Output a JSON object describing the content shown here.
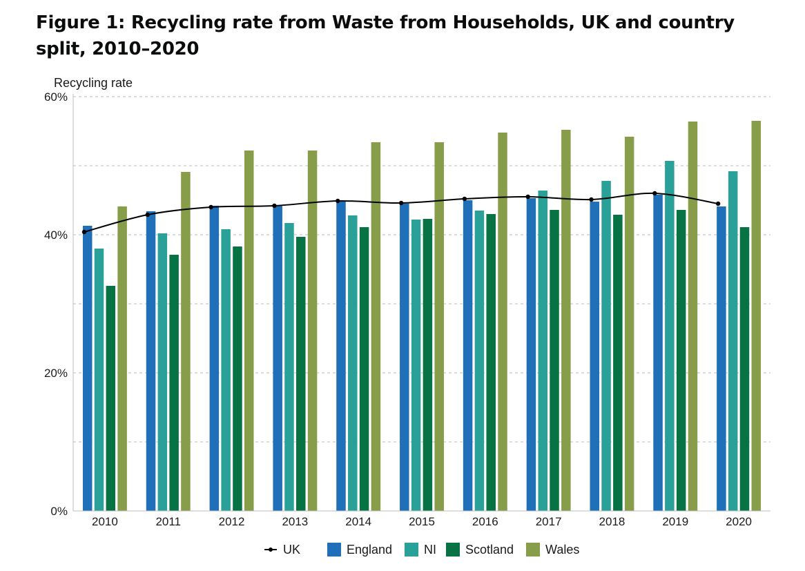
{
  "title": "Figure 1: Recycling rate from Waste from Households, UK and country split, 2010–2020",
  "chart_data": {
    "type": "bar",
    "title": "Figure 1: Recycling rate from Waste from Households, UK and country split, 2010–2020",
    "ylabel": "Recycling rate",
    "xlabel": "",
    "categories": [
      "2010",
      "2011",
      "2012",
      "2013",
      "2014",
      "2015",
      "2016",
      "2017",
      "2018",
      "2019",
      "2020"
    ],
    "ylim": [
      0,
      60
    ],
    "yticks": [
      "0%",
      "20%",
      "40%",
      "60%"
    ],
    "grid": "horizontal dashed",
    "legend_position": "bottom",
    "series": [
      {
        "name": "England",
        "type": "bar",
        "color": "#1f6fb9",
        "values": [
          41.3,
          43.4,
          44.2,
          44.2,
          44.8,
          44.5,
          45.0,
          45.3,
          44.8,
          45.8,
          44.1
        ]
      },
      {
        "name": "NI",
        "type": "bar",
        "color": "#2aa198",
        "values": [
          38.0,
          40.2,
          40.8,
          41.7,
          42.8,
          42.2,
          43.5,
          46.4,
          47.8,
          50.7,
          49.2
        ]
      },
      {
        "name": "Scotland",
        "type": "bar",
        "color": "#077244",
        "values": [
          32.6,
          37.1,
          38.3,
          39.7,
          41.1,
          42.3,
          43.0,
          43.6,
          42.9,
          43.6,
          41.1
        ]
      },
      {
        "name": "Wales",
        "type": "bar",
        "color": "#879d4a",
        "values": [
          44.1,
          49.1,
          52.2,
          52.2,
          53.4,
          53.4,
          54.8,
          55.2,
          54.2,
          56.4,
          56.5
        ]
      },
      {
        "name": "UK",
        "type": "line",
        "color": "#000000",
        "values": [
          40.4,
          42.9,
          44.0,
          44.2,
          44.9,
          44.6,
          45.2,
          45.5,
          45.1,
          46.0,
          44.5
        ]
      }
    ],
    "legend": [
      "UK",
      "England",
      "NI",
      "Scotland",
      "Wales"
    ]
  }
}
